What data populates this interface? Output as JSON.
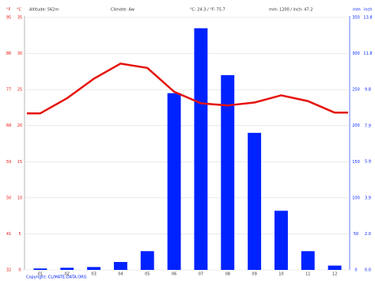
{
  "chart_data": {
    "type": "combo",
    "y_label_f": "°F",
    "y_label": "°C",
    "altitude": "Altitude: 562m",
    "climate": "Climate: Aw",
    "temperature": "°C: 24.3 / °F: 75.7",
    "precipitation": "mm: 1200 / inch: 47.2",
    "y2_label": "mm",
    "y3_label": "inch",
    "copyright": "Copyright: CLIMATE-DATA.ORG",
    "categories": [
      "01",
      "02",
      "03",
      "04",
      "05",
      "06",
      "07",
      "08",
      "09",
      "10",
      "11",
      "12"
    ],
    "ylim": [
      0,
      35
    ],
    "yticks": [
      0,
      5,
      10,
      15,
      20,
      25,
      30,
      35
    ],
    "yflim": [
      32,
      95
    ],
    "yfticks": [
      32,
      41,
      50,
      59,
      68,
      77,
      86,
      95
    ],
    "y2lim": [
      0,
      350
    ],
    "y2ticks": [
      0,
      50,
      100,
      150,
      200,
      250,
      300,
      350
    ],
    "y3lim": [
      0,
      13.78
    ],
    "y3ticks": [
      {
        "value": 0,
        "label": "0.0"
      },
      {
        "value": 1.97,
        "label": "2.0"
      },
      {
        "value": 3.94,
        "label": "3.9"
      },
      {
        "value": 5.91,
        "label": "5.9"
      },
      {
        "value": 7.87,
        "label": "7.9"
      },
      {
        "value": 9.84,
        "label": "9.8"
      },
      {
        "value": 11.81,
        "label": "11.8"
      },
      {
        "value": 13.78,
        "label": "13.8"
      }
    ],
    "grid": true,
    "series": [
      {
        "type": "bar",
        "axis": "y2",
        "color": "#0022ff",
        "values": [
          2,
          3,
          4,
          11,
          26,
          245,
          335,
          270,
          190,
          82,
          26,
          6
        ]
      },
      {
        "type": "line",
        "axis": "y",
        "color": "#e5120c",
        "values": [
          21.7,
          23.8,
          26.5,
          28.6,
          28.0,
          24.7,
          23.1,
          22.8,
          23.2,
          24.2,
          23.4,
          21.8
        ]
      }
    ]
  }
}
